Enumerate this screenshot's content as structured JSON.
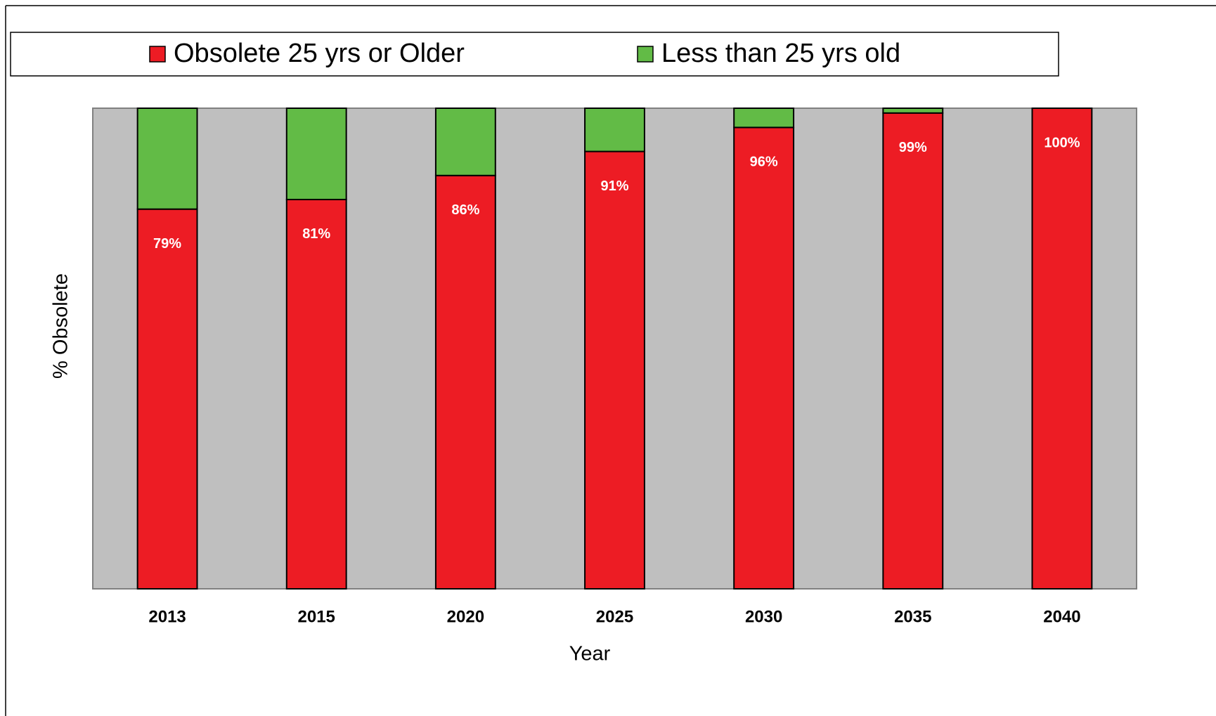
{
  "chart_data": {
    "type": "stacked-bar",
    "categories": [
      "2013",
      "2015",
      "2020",
      "2025",
      "2030",
      "2035",
      "2040"
    ],
    "series": [
      {
        "name": "Obsolete 25 yrs or Older",
        "color": "#ed1c24",
        "values": [
          79,
          81,
          86,
          91,
          96,
          99,
          100
        ],
        "value_labels": [
          "79%",
          "81%",
          "86%",
          "91%",
          "96%",
          "99%",
          "100%"
        ]
      },
      {
        "name": "Less than 25 yrs old",
        "color": "#62bb46",
        "values": [
          21,
          19,
          14,
          9,
          4,
          1,
          0
        ]
      }
    ],
    "ylim": [
      0,
      100
    ],
    "x_label": "Year",
    "y_label": "% Obsolete",
    "background": "#bfbfbf"
  }
}
